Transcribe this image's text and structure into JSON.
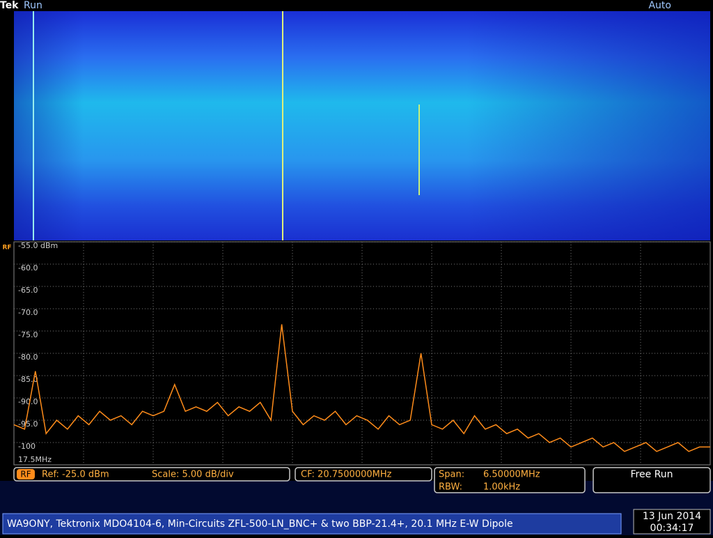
{
  "header": {
    "brand": "Tek",
    "status": "Run",
    "trigger": "Auto"
  },
  "chart_data": {
    "type": "line",
    "color": "#ff8c1a",
    "x": [
      17.5,
      17.6,
      17.7,
      17.8,
      17.9,
      18.0,
      18.1,
      18.2,
      18.3,
      18.4,
      18.5,
      18.6,
      18.7,
      18.8,
      18.9,
      19.0,
      19.1,
      19.2,
      19.3,
      19.4,
      19.5,
      19.6,
      19.7,
      19.8,
      19.9,
      20.0,
      20.1,
      20.2,
      20.3,
      20.4,
      20.5,
      20.6,
      20.7,
      20.8,
      20.9,
      21.0,
      21.1,
      21.2,
      21.3,
      21.4,
      21.5,
      21.6,
      21.7,
      21.8,
      21.9,
      22.0,
      22.1,
      22.2,
      22.3,
      22.4,
      22.5,
      22.6,
      22.7,
      22.8,
      22.9,
      23.0,
      23.1,
      23.2,
      23.3,
      23.4,
      23.5,
      23.6,
      23.7,
      23.8,
      23.9,
      24.0
    ],
    "values": [
      -96,
      -97,
      -84,
      -98,
      -95,
      -97,
      -94,
      -96,
      -93,
      -95,
      -94,
      -96,
      -93,
      -94,
      -93,
      -87,
      -93,
      -92,
      -93,
      -91,
      -94,
      -92,
      -93,
      -91,
      -95,
      -73.5,
      -93,
      -96,
      -94,
      -95,
      -93,
      -96,
      -94,
      -95,
      -97,
      -94,
      -96,
      -95,
      -80,
      -96,
      -97,
      -95,
      -98,
      -94,
      -97,
      -96,
      -98,
      -97,
      -99,
      -98,
      -100,
      -99,
      -101,
      -100,
      -99,
      -101,
      -100,
      -102,
      -101,
      -100,
      -102,
      -101,
      -100,
      -102,
      -101,
      -101
    ],
    "xlim": [
      17.5,
      24.0
    ],
    "xticks": [
      {
        "value": 17.5,
        "label": "17.5MHz"
      }
    ],
    "ylim": [
      -105,
      -55
    ],
    "yticks": [
      {
        "value": -55,
        "label": "-55.0 dBm"
      },
      {
        "value": -60,
        "label": "-60.0"
      },
      {
        "value": -65,
        "label": "-65.0"
      },
      {
        "value": -70,
        "label": "-70.0"
      },
      {
        "value": -75,
        "label": "-75.0"
      },
      {
        "value": -80,
        "label": "-80.0"
      },
      {
        "value": -85,
        "label": "-85.0"
      },
      {
        "value": -90,
        "label": "-90.0"
      },
      {
        "value": -95,
        "label": "-95.0"
      },
      -100
    ],
    "grid": true
  },
  "status": {
    "rf": "RF",
    "ref": "Ref: -25.0 dBm",
    "scale": "Scale: 5.00 dB/div",
    "cf": "CF: 20.7500000MHz",
    "span_label": "Span:",
    "span": "6.50000MHz",
    "rbw_label": "RBW:",
    "rbw": "1.00kHz",
    "mode": "Free Run"
  },
  "footer": {
    "note": "WA9ONY, Tektronix MDO4104-6, Min-Circuits ZFL-500-LN_BNC+ & two BBP-21.4+, 20.1 MHz E-W Dipole",
    "date": "13 Jun 2014",
    "time": "00:34:17"
  }
}
